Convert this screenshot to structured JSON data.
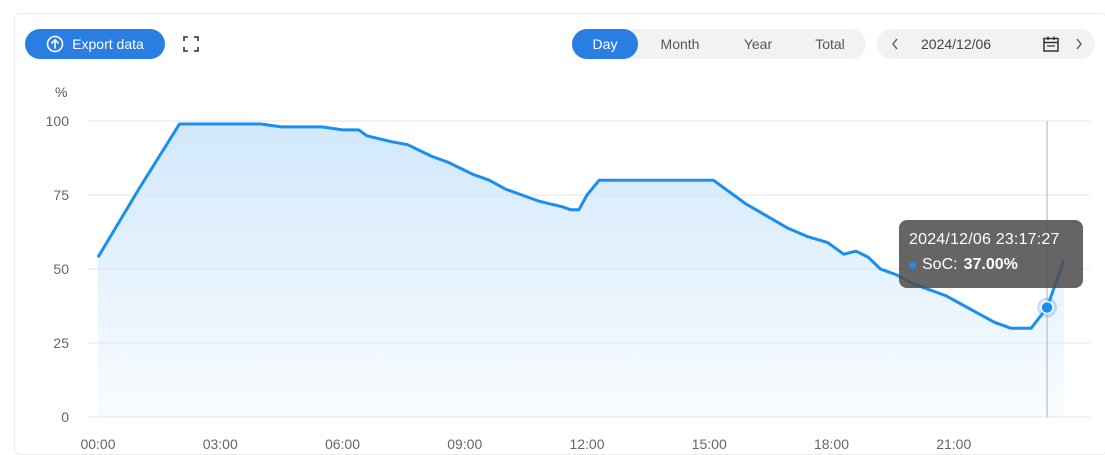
{
  "toolbar": {
    "export_label": "Export data",
    "tabs": [
      {
        "label": "Day",
        "active": true
      },
      {
        "label": "Month",
        "active": false
      },
      {
        "label": "Year",
        "active": false
      },
      {
        "label": "Total",
        "active": false
      }
    ],
    "date": "2024/12/06",
    "icons": [
      "upload-icon",
      "fullscreen-icon",
      "chevron-left-icon",
      "calendar-icon",
      "chevron-right-icon"
    ]
  },
  "colors": {
    "accent": "#2a7de1",
    "line": "#1a8ff0",
    "fill": "#cfe7fb"
  },
  "tooltip": {
    "title": "2024/12/06 23:17:27",
    "series_label": "SoC:",
    "value": "37.00%"
  },
  "chart_data": {
    "type": "area",
    "unit": "%",
    "xlabel": "",
    "ylabel": "",
    "x_ticks": [
      "00:00",
      "03:00",
      "06:00",
      "09:00",
      "12:00",
      "15:00",
      "18:00",
      "21:00"
    ],
    "y_ticks": [
      0,
      25,
      50,
      75,
      100
    ],
    "ylim": [
      0,
      100
    ],
    "xlim_hours": [
      0,
      24
    ],
    "grid": true,
    "series": [
      {
        "name": "SoC",
        "x_hours": [
          0.0,
          1.0,
          2.0,
          2.5,
          4.0,
          4.5,
          5.5,
          6.0,
          6.4,
          6.6,
          6.9,
          7.2,
          7.6,
          7.9,
          8.2,
          8.6,
          8.9,
          9.2,
          9.6,
          10.0,
          10.4,
          10.8,
          11.1,
          11.4,
          11.6,
          11.8,
          12.0,
          12.3,
          13.0,
          14.0,
          14.4,
          15.1,
          15.3,
          15.6,
          15.9,
          16.4,
          16.9,
          17.4,
          17.9,
          18.1,
          18.3,
          18.6,
          18.9,
          19.2,
          19.6,
          20.0,
          20.4,
          20.8,
          21.2,
          21.6,
          22.0,
          22.4,
          22.9,
          23.29,
          23.7
        ],
        "values": [
          54,
          77,
          99,
          99,
          99,
          98,
          98,
          97,
          97,
          95,
          94,
          93,
          92,
          90,
          88,
          86,
          84,
          82,
          80,
          77,
          75,
          73,
          72,
          71,
          70,
          70,
          75,
          80,
          80,
          80,
          80,
          80,
          78,
          75,
          72,
          68,
          64,
          61,
          59,
          57,
          55,
          56,
          54,
          50,
          48,
          45,
          43,
          41,
          38,
          35,
          32,
          30,
          30,
          37,
          53
        ]
      }
    ],
    "highlight": {
      "x_hours": 23.29,
      "value": 37
    }
  }
}
